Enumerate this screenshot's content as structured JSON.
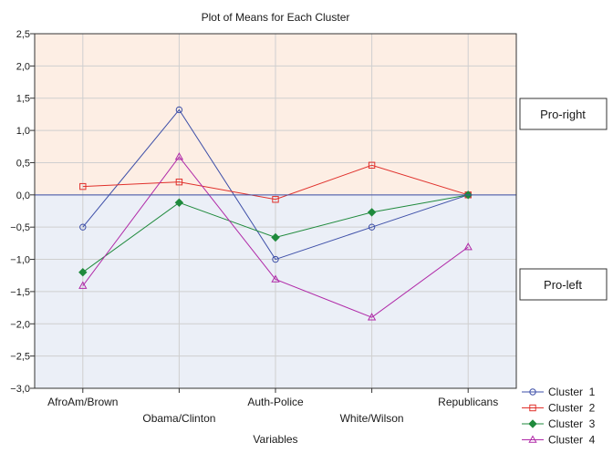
{
  "chart_data": {
    "type": "line",
    "title": "Plot of Means for Each Cluster",
    "xlabel": "Variables",
    "ylabel": "",
    "categories": [
      "AfroAm/Brown",
      "Obama/Clinton",
      "Auth-Police",
      "White/Wilson",
      "Republicans"
    ],
    "ylim": [
      -3.0,
      2.5
    ],
    "yticks": [
      2.5,
      2.0,
      1.5,
      1.0,
      0.5,
      0.0,
      -0.5,
      -1.0,
      -1.5,
      -2.0,
      -2.5,
      -3.0
    ],
    "ytick_labels": [
      "2,5",
      "2,0",
      "1,5",
      "1,0",
      "0,5",
      "0,0",
      "−0,5",
      "−1,0",
      "−1,5",
      "−2,0",
      "−2,5",
      "−3,0"
    ],
    "grid": true,
    "legend_position": "bottom-right",
    "series": [
      {
        "name": "Cluster  1",
        "values": [
          -0.5,
          1.32,
          -1.0,
          -0.5,
          0.0
        ],
        "color": "#3d4fa8",
        "marker": "circle"
      },
      {
        "name": "Cluster  2",
        "values": [
          0.13,
          0.2,
          -0.07,
          0.46,
          0.0
        ],
        "color": "#e0302b",
        "marker": "square"
      },
      {
        "name": "Cluster  3",
        "values": [
          -1.2,
          -0.12,
          -0.66,
          -0.27,
          0.0
        ],
        "color": "#1f8a3c",
        "marker": "diamond"
      },
      {
        "name": "Cluster  4",
        "values": [
          -1.41,
          0.59,
          -1.31,
          -1.9,
          -0.81
        ],
        "color": "#b02aa8",
        "marker": "triangle"
      }
    ],
    "regions": {
      "positive": {
        "label": "Pro-right",
        "color": "#fdeee4"
      },
      "negative": {
        "label": "Pro-left",
        "color": "#ebeff7"
      }
    }
  }
}
